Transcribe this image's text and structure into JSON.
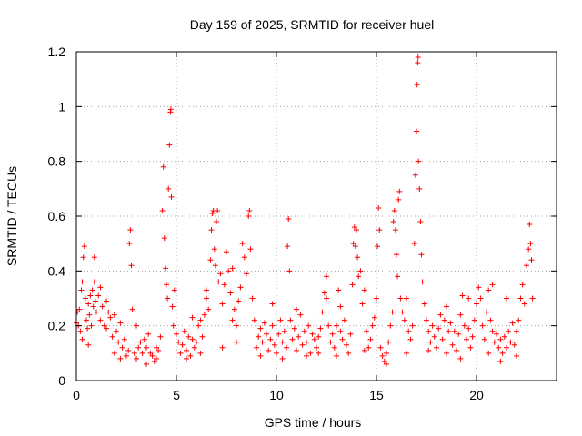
{
  "chart_data": {
    "type": "scatter",
    "title": "Day 159 of 2025, SRMTID for receiver huel",
    "xlabel": "GPS time / hours",
    "ylabel": "SRMTID / TECUs",
    "xlim": [
      0,
      24
    ],
    "ylim": [
      0,
      1.2
    ],
    "xticks": [
      0,
      5,
      10,
      15,
      20
    ],
    "xtick_labels": [
      "0",
      "5",
      "10",
      "15",
      "20"
    ],
    "yticks": [
      0,
      0.2,
      0.4,
      0.6,
      0.8,
      1.0,
      1.2
    ],
    "ytick_labels": [
      "0",
      "0.2",
      "0.4",
      "0.6",
      "0.8",
      "1",
      "1.2"
    ],
    "grid": true,
    "marker": "+",
    "color": "#ff0000",
    "series": [
      {
        "name": "SRMTID",
        "points": [
          [
            0.0,
            0.21
          ],
          [
            0.05,
            0.25
          ],
          [
            0.1,
            0.2
          ],
          [
            0.15,
            0.26
          ],
          [
            0.2,
            0.18
          ],
          [
            0.25,
            0.33
          ],
          [
            0.3,
            0.36
          ],
          [
            0.35,
            0.45
          ],
          [
            0.4,
            0.49
          ],
          [
            0.45,
            0.3
          ],
          [
            0.5,
            0.22
          ],
          [
            0.55,
            0.19
          ],
          [
            0.6,
            0.28
          ],
          [
            0.65,
            0.24
          ],
          [
            0.7,
            0.31
          ],
          [
            0.75,
            0.2
          ],
          [
            0.8,
            0.33
          ],
          [
            0.85,
            0.27
          ],
          [
            0.9,
            0.45
          ],
          [
            0.95,
            0.29
          ],
          [
            1.0,
            0.25
          ],
          [
            1.1,
            0.31
          ],
          [
            1.2,
            0.22
          ],
          [
            1.3,
            0.27
          ],
          [
            1.4,
            0.2
          ],
          [
            1.5,
            0.19
          ],
          [
            1.6,
            0.25
          ],
          [
            1.7,
            0.23
          ],
          [
            1.8,
            0.16
          ],
          [
            1.9,
            0.24
          ],
          [
            2.0,
            0.18
          ],
          [
            2.1,
            0.14
          ],
          [
            2.2,
            0.21
          ],
          [
            2.3,
            0.12
          ],
          [
            2.4,
            0.15
          ],
          [
            2.5,
            0.09
          ],
          [
            2.6,
            0.11
          ],
          [
            2.65,
            0.5
          ],
          [
            2.7,
            0.55
          ],
          [
            2.75,
            0.42
          ],
          [
            2.8,
            0.26
          ],
          [
            2.9,
            0.1
          ],
          [
            3.0,
            0.08
          ],
          [
            3.1,
            0.12
          ],
          [
            3.2,
            0.14
          ],
          [
            3.3,
            0.1
          ],
          [
            3.4,
            0.15
          ],
          [
            3.5,
            0.12
          ],
          [
            3.6,
            0.17
          ],
          [
            3.7,
            0.1
          ],
          [
            3.8,
            0.09
          ],
          [
            3.9,
            0.07
          ],
          [
            4.0,
            0.08
          ],
          [
            4.1,
            0.11
          ],
          [
            4.2,
            0.16
          ],
          [
            4.3,
            0.62
          ],
          [
            4.35,
            0.78
          ],
          [
            4.4,
            0.52
          ],
          [
            4.45,
            0.41
          ],
          [
            4.5,
            0.35
          ],
          [
            4.55,
            0.3
          ],
          [
            4.6,
            0.7
          ],
          [
            4.65,
            0.86
          ],
          [
            4.7,
            0.98
          ],
          [
            4.72,
            0.99
          ],
          [
            4.75,
            0.67
          ],
          [
            4.8,
            0.27
          ],
          [
            4.85,
            0.2
          ],
          [
            4.9,
            0.33
          ],
          [
            5.0,
            0.17
          ],
          [
            5.1,
            0.14
          ],
          [
            5.2,
            0.1
          ],
          [
            5.3,
            0.13
          ],
          [
            5.4,
            0.18
          ],
          [
            5.5,
            0.11
          ],
          [
            5.6,
            0.16
          ],
          [
            5.7,
            0.09
          ],
          [
            5.8,
            0.15
          ],
          [
            5.9,
            0.12
          ],
          [
            6.0,
            0.14
          ],
          [
            6.1,
            0.2
          ],
          [
            6.2,
            0.22
          ],
          [
            6.3,
            0.16
          ],
          [
            6.4,
            0.24
          ],
          [
            6.5,
            0.3
          ],
          [
            6.6,
            0.26
          ],
          [
            6.7,
            0.44
          ],
          [
            6.75,
            0.55
          ],
          [
            6.8,
            0.61
          ],
          [
            6.85,
            0.62
          ],
          [
            6.9,
            0.48
          ],
          [
            6.95,
            0.42
          ],
          [
            7.0,
            0.58
          ],
          [
            7.05,
            0.62
          ],
          [
            7.1,
            0.36
          ],
          [
            7.2,
            0.39
          ],
          [
            7.3,
            0.28
          ],
          [
            7.4,
            0.35
          ],
          [
            7.5,
            0.47
          ],
          [
            7.6,
            0.4
          ],
          [
            7.7,
            0.32
          ],
          [
            7.8,
            0.22
          ],
          [
            7.9,
            0.26
          ],
          [
            8.0,
            0.2
          ],
          [
            8.1,
            0.29
          ],
          [
            8.2,
            0.34
          ],
          [
            8.3,
            0.5
          ],
          [
            8.4,
            0.45
          ],
          [
            8.5,
            0.39
          ],
          [
            8.6,
            0.6
          ],
          [
            8.65,
            0.62
          ],
          [
            8.7,
            0.48
          ],
          [
            8.8,
            0.3
          ],
          [
            8.9,
            0.22
          ],
          [
            9.0,
            0.12
          ],
          [
            9.1,
            0.16
          ],
          [
            9.2,
            0.19
          ],
          [
            9.3,
            0.14
          ],
          [
            9.4,
            0.21
          ],
          [
            9.5,
            0.17
          ],
          [
            9.6,
            0.11
          ],
          [
            9.7,
            0.15
          ],
          [
            9.8,
            0.2
          ],
          [
            9.9,
            0.13
          ],
          [
            10.0,
            0.1
          ],
          [
            10.1,
            0.17
          ],
          [
            10.2,
            0.22
          ],
          [
            10.3,
            0.14
          ],
          [
            10.4,
            0.18
          ],
          [
            10.5,
            0.12
          ],
          [
            10.55,
            0.49
          ],
          [
            10.6,
            0.59
          ],
          [
            10.65,
            0.4
          ],
          [
            10.7,
            0.22
          ],
          [
            10.8,
            0.15
          ],
          [
            10.9,
            0.19
          ],
          [
            11.0,
            0.11
          ],
          [
            11.1,
            0.16
          ],
          [
            11.2,
            0.24
          ],
          [
            11.3,
            0.13
          ],
          [
            11.4,
            0.18
          ],
          [
            11.5,
            0.14
          ],
          [
            11.6,
            0.2
          ],
          [
            11.7,
            0.1
          ],
          [
            11.8,
            0.17
          ],
          [
            11.9,
            0.15
          ],
          [
            12.0,
            0.12
          ],
          [
            12.1,
            0.16
          ],
          [
            12.2,
            0.19
          ],
          [
            12.3,
            0.25
          ],
          [
            12.4,
            0.32
          ],
          [
            12.5,
            0.38
          ],
          [
            12.6,
            0.2
          ],
          [
            12.7,
            0.14
          ],
          [
            12.8,
            0.17
          ],
          [
            12.9,
            0.12
          ],
          [
            13.0,
            0.2
          ],
          [
            13.1,
            0.33
          ],
          [
            13.2,
            0.18
          ],
          [
            13.3,
            0.15
          ],
          [
            13.4,
            0.22
          ],
          [
            13.5,
            0.13
          ],
          [
            13.6,
            0.1
          ],
          [
            13.7,
            0.17
          ],
          [
            13.8,
            0.35
          ],
          [
            13.85,
            0.5
          ],
          [
            13.9,
            0.56
          ],
          [
            13.95,
            0.49
          ],
          [
            14.0,
            0.55
          ],
          [
            14.05,
            0.45
          ],
          [
            14.1,
            0.38
          ],
          [
            14.2,
            0.4
          ],
          [
            14.3,
            0.28
          ],
          [
            14.4,
            0.33
          ],
          [
            14.5,
            0.18
          ],
          [
            14.6,
            0.12
          ],
          [
            14.7,
            0.15
          ],
          [
            14.8,
            0.2
          ],
          [
            14.9,
            0.23
          ],
          [
            15.0,
            0.3
          ],
          [
            15.05,
            0.49
          ],
          [
            15.1,
            0.63
          ],
          [
            15.15,
            0.55
          ],
          [
            15.2,
            0.12
          ],
          [
            15.3,
            0.09
          ],
          [
            15.4,
            0.07
          ],
          [
            15.5,
            0.1
          ],
          [
            15.6,
            0.14
          ],
          [
            15.7,
            0.2
          ],
          [
            15.8,
            0.25
          ],
          [
            15.85,
            0.58
          ],
          [
            15.9,
            0.62
          ],
          [
            15.95,
            0.55
          ],
          [
            16.0,
            0.46
          ],
          [
            16.05,
            0.38
          ],
          [
            16.1,
            0.66
          ],
          [
            16.15,
            0.69
          ],
          [
            16.2,
            0.3
          ],
          [
            16.3,
            0.25
          ],
          [
            16.4,
            0.22
          ],
          [
            16.5,
            0.3
          ],
          [
            16.6,
            0.18
          ],
          [
            16.7,
            0.15
          ],
          [
            16.8,
            0.2
          ],
          [
            16.9,
            0.5
          ],
          [
            16.95,
            0.75
          ],
          [
            17.0,
            0.91
          ],
          [
            17.03,
            1.08
          ],
          [
            17.06,
            1.16
          ],
          [
            17.08,
            1.18
          ],
          [
            17.1,
            0.8
          ],
          [
            17.15,
            0.7
          ],
          [
            17.2,
            0.58
          ],
          [
            17.25,
            0.46
          ],
          [
            17.3,
            0.36
          ],
          [
            17.4,
            0.28
          ],
          [
            17.5,
            0.22
          ],
          [
            17.6,
            0.18
          ],
          [
            17.7,
            0.14
          ],
          [
            17.8,
            0.2
          ],
          [
            17.9,
            0.16
          ],
          [
            18.0,
            0.12
          ],
          [
            18.1,
            0.19
          ],
          [
            18.2,
            0.24
          ],
          [
            18.3,
            0.15
          ],
          [
            18.4,
            0.22
          ],
          [
            18.5,
            0.27
          ],
          [
            18.6,
            0.18
          ],
          [
            18.7,
            0.21
          ],
          [
            18.8,
            0.13
          ],
          [
            18.9,
            0.18
          ],
          [
            19.0,
            0.11
          ],
          [
            19.1,
            0.17
          ],
          [
            19.2,
            0.24
          ],
          [
            19.3,
            0.31
          ],
          [
            19.4,
            0.2
          ],
          [
            19.5,
            0.15
          ],
          [
            19.6,
            0.19
          ],
          [
            19.7,
            0.12
          ],
          [
            19.8,
            0.16
          ],
          [
            19.9,
            0.22
          ],
          [
            20.0,
            0.28
          ],
          [
            20.1,
            0.34
          ],
          [
            20.2,
            0.3
          ],
          [
            20.3,
            0.2
          ],
          [
            20.4,
            0.15
          ],
          [
            20.5,
            0.25
          ],
          [
            20.6,
            0.33
          ],
          [
            20.7,
            0.22
          ],
          [
            20.8,
            0.18
          ],
          [
            20.9,
            0.14
          ],
          [
            21.0,
            0.17
          ],
          [
            21.1,
            0.12
          ],
          [
            21.2,
            0.15
          ],
          [
            21.3,
            0.1
          ],
          [
            21.4,
            0.16
          ],
          [
            21.5,
            0.12
          ],
          [
            21.6,
            0.18
          ],
          [
            21.7,
            0.14
          ],
          [
            21.8,
            0.21
          ],
          [
            21.9,
            0.13
          ],
          [
            22.0,
            0.18
          ],
          [
            22.1,
            0.22
          ],
          [
            22.2,
            0.3
          ],
          [
            22.3,
            0.35
          ],
          [
            22.4,
            0.28
          ],
          [
            22.5,
            0.42
          ],
          [
            22.6,
            0.48
          ],
          [
            22.65,
            0.57
          ],
          [
            22.7,
            0.5
          ],
          [
            22.75,
            0.44
          ],
          [
            22.8,
            0.3
          ],
          [
            0.3,
            0.15
          ],
          [
            0.6,
            0.13
          ],
          [
            1.5,
            0.29
          ],
          [
            1.9,
            0.1
          ],
          [
            2.2,
            0.08
          ],
          [
            3.5,
            0.06
          ],
          [
            4.0,
            0.12
          ],
          [
            5.5,
            0.08
          ],
          [
            6.2,
            0.1
          ],
          [
            7.3,
            0.12
          ],
          [
            8.0,
            0.14
          ],
          [
            9.2,
            0.09
          ],
          [
            10.3,
            0.08
          ],
          [
            11.5,
            0.09
          ],
          [
            12.1,
            0.1
          ],
          [
            13.0,
            0.09
          ],
          [
            14.4,
            0.11
          ],
          [
            15.5,
            0.06
          ],
          [
            16.5,
            0.1
          ],
          [
            17.6,
            0.11
          ],
          [
            18.5,
            0.1
          ],
          [
            19.2,
            0.08
          ],
          [
            20.6,
            0.1
          ],
          [
            21.2,
            0.07
          ],
          [
            22.0,
            0.09
          ],
          [
            19.6,
            0.3
          ],
          [
            20.8,
            0.35
          ],
          [
            21.5,
            0.3
          ],
          [
            12.5,
            0.3
          ],
          [
            13.2,
            0.27
          ],
          [
            11.0,
            0.26
          ],
          [
            9.8,
            0.28
          ],
          [
            7.8,
            0.41
          ],
          [
            6.5,
            0.33
          ],
          [
            5.8,
            0.23
          ],
          [
            3.0,
            0.2
          ],
          [
            1.2,
            0.34
          ],
          [
            0.9,
            0.36
          ]
        ]
      }
    ]
  }
}
